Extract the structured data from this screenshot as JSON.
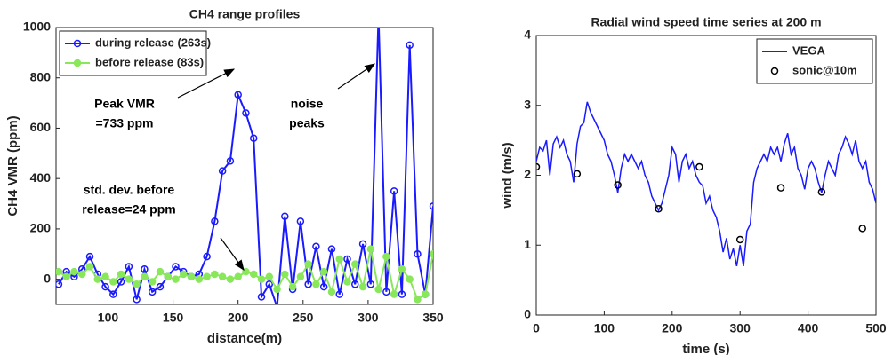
{
  "chart_data": [
    {
      "type": "line",
      "title": "CH4 range profiles",
      "xlabel": "distance(m)",
      "ylabel": "CH4 VMR (ppm)",
      "xlim": [
        60,
        350
      ],
      "xticks": [
        100,
        150,
        200,
        250,
        300,
        350
      ],
      "ylim": [
        -100,
        1000
      ],
      "yticks": [
        0,
        200,
        400,
        600,
        800,
        1000
      ],
      "legend": "upper left",
      "series": [
        {
          "name": "during release (263s)",
          "color": "#1a1aff",
          "marker": "open-circle",
          "line": true,
          "x": [
            62,
            68,
            74,
            80,
            86,
            92,
            98,
            104,
            110,
            116,
            122,
            128,
            134,
            140,
            146,
            152,
            158,
            164,
            170,
            176,
            182,
            188,
            194,
            200,
            206,
            212,
            218,
            224,
            230,
            236,
            242,
            248,
            254,
            260,
            266,
            272,
            278,
            284,
            290,
            296,
            302,
            308,
            314,
            320,
            326,
            332,
            338,
            344,
            350
          ],
          "values": [
            -20,
            30,
            10,
            40,
            90,
            20,
            -30,
            -60,
            -10,
            50,
            -80,
            40,
            -50,
            -30,
            10,
            50,
            30,
            10,
            20,
            90,
            230,
            430,
            470,
            733,
            660,
            560,
            -70,
            -20,
            -110,
            250,
            -40,
            230,
            -20,
            130,
            -30,
            120,
            -60,
            80,
            -20,
            140,
            -20,
            1050,
            -50,
            350,
            -60,
            930,
            100,
            -60,
            290
          ]
        },
        {
          "name": "before release (83s)",
          "color": "#88e85a",
          "marker": "filled-circle",
          "line": true,
          "x": [
            62,
            68,
            74,
            80,
            86,
            92,
            98,
            104,
            110,
            116,
            122,
            128,
            134,
            140,
            146,
            152,
            158,
            164,
            170,
            176,
            182,
            188,
            194,
            200,
            206,
            212,
            218,
            224,
            230,
            236,
            242,
            248,
            254,
            260,
            266,
            272,
            278,
            284,
            290,
            296,
            302,
            308,
            314,
            320,
            326,
            332,
            338,
            344,
            350
          ],
          "values": [
            30,
            10,
            30,
            20,
            50,
            0,
            10,
            -10,
            20,
            0,
            -20,
            10,
            -10,
            30,
            10,
            0,
            20,
            10,
            0,
            10,
            20,
            10,
            0,
            10,
            30,
            20,
            0,
            10,
            -40,
            20,
            -30,
            10,
            60,
            -20,
            30,
            -50,
            80,
            -10,
            60,
            -30,
            120,
            -40,
            90,
            -60,
            40,
            0,
            -80,
            -60,
            100
          ]
        }
      ],
      "annotations": [
        {
          "lines": [
            "Peak VMR",
            "=733 ppm"
          ]
        },
        {
          "lines": [
            "noise",
            "peaks"
          ]
        },
        {
          "lines": [
            "std. dev. before",
            "release=24 ppm"
          ]
        }
      ]
    },
    {
      "type": "line",
      "title": "Radial wind speed time series at 200 m",
      "xlabel": "time (s)",
      "ylabel": "wind (m/s)",
      "xlim": [
        0,
        500
      ],
      "xticks": [
        0,
        100,
        200,
        300,
        400,
        500
      ],
      "ylim": [
        0,
        4
      ],
      "yticks": [
        0,
        1,
        2,
        3,
        4
      ],
      "legend": "upper right",
      "series": [
        {
          "name": "VEGA",
          "color": "#1a1aff",
          "marker": "none",
          "line": true,
          "x": [
            0,
            5,
            10,
            15,
            20,
            25,
            30,
            35,
            40,
            45,
            50,
            55,
            60,
            65,
            70,
            75,
            80,
            85,
            90,
            95,
            100,
            105,
            110,
            115,
            120,
            125,
            130,
            135,
            140,
            145,
            150,
            155,
            160,
            165,
            170,
            175,
            180,
            185,
            190,
            195,
            200,
            205,
            210,
            215,
            220,
            225,
            230,
            235,
            240,
            245,
            250,
            255,
            260,
            265,
            270,
            275,
            280,
            285,
            290,
            295,
            300,
            305,
            310,
            315,
            320,
            325,
            330,
            335,
            340,
            345,
            350,
            355,
            360,
            365,
            370,
            375,
            380,
            385,
            390,
            395,
            400,
            405,
            410,
            415,
            420,
            425,
            430,
            435,
            440,
            445,
            450,
            455,
            460,
            465,
            470,
            475,
            480,
            485,
            490,
            495,
            500
          ],
          "values": [
            2.2,
            2.4,
            2.35,
            2.5,
            2.0,
            2.45,
            2.55,
            2.4,
            2.5,
            2.3,
            2.2,
            1.9,
            2.45,
            2.7,
            2.75,
            3.05,
            2.9,
            2.8,
            2.7,
            2.6,
            2.5,
            2.3,
            2.2,
            2.0,
            1.75,
            2.1,
            2.3,
            2.2,
            2.3,
            2.2,
            2.1,
            2.2,
            2.0,
            1.9,
            1.7,
            1.6,
            1.5,
            1.6,
            1.8,
            2.0,
            2.4,
            2.3,
            1.9,
            2.2,
            2.3,
            2.1,
            2.2,
            2.0,
            1.9,
            1.85,
            1.6,
            1.7,
            1.5,
            1.4,
            1.2,
            0.9,
            1.1,
            0.8,
            0.95,
            0.7,
            1.0,
            0.7,
            1.2,
            1.3,
            1.9,
            2.1,
            2.2,
            2.3,
            2.2,
            2.4,
            2.3,
            2.4,
            2.2,
            2.45,
            2.6,
            2.3,
            2.4,
            2.1,
            2.0,
            1.8,
            2.1,
            2.2,
            2.1,
            1.9,
            1.75,
            2.0,
            2.2,
            2.1,
            2.0,
            2.3,
            2.4,
            2.55,
            2.45,
            2.3,
            2.5,
            2.2,
            2.1,
            2.2,
            1.9,
            1.8,
            1.6
          ]
        },
        {
          "name": "sonic@10m",
          "color": "#000000",
          "marker": "open-circle",
          "line": false,
          "x": [
            0,
            60,
            120,
            180,
            240,
            300,
            360,
            420,
            480
          ],
          "values": [
            2.12,
            2.02,
            1.86,
            1.52,
            2.12,
            1.08,
            1.82,
            1.76,
            1.24
          ]
        }
      ]
    }
  ]
}
